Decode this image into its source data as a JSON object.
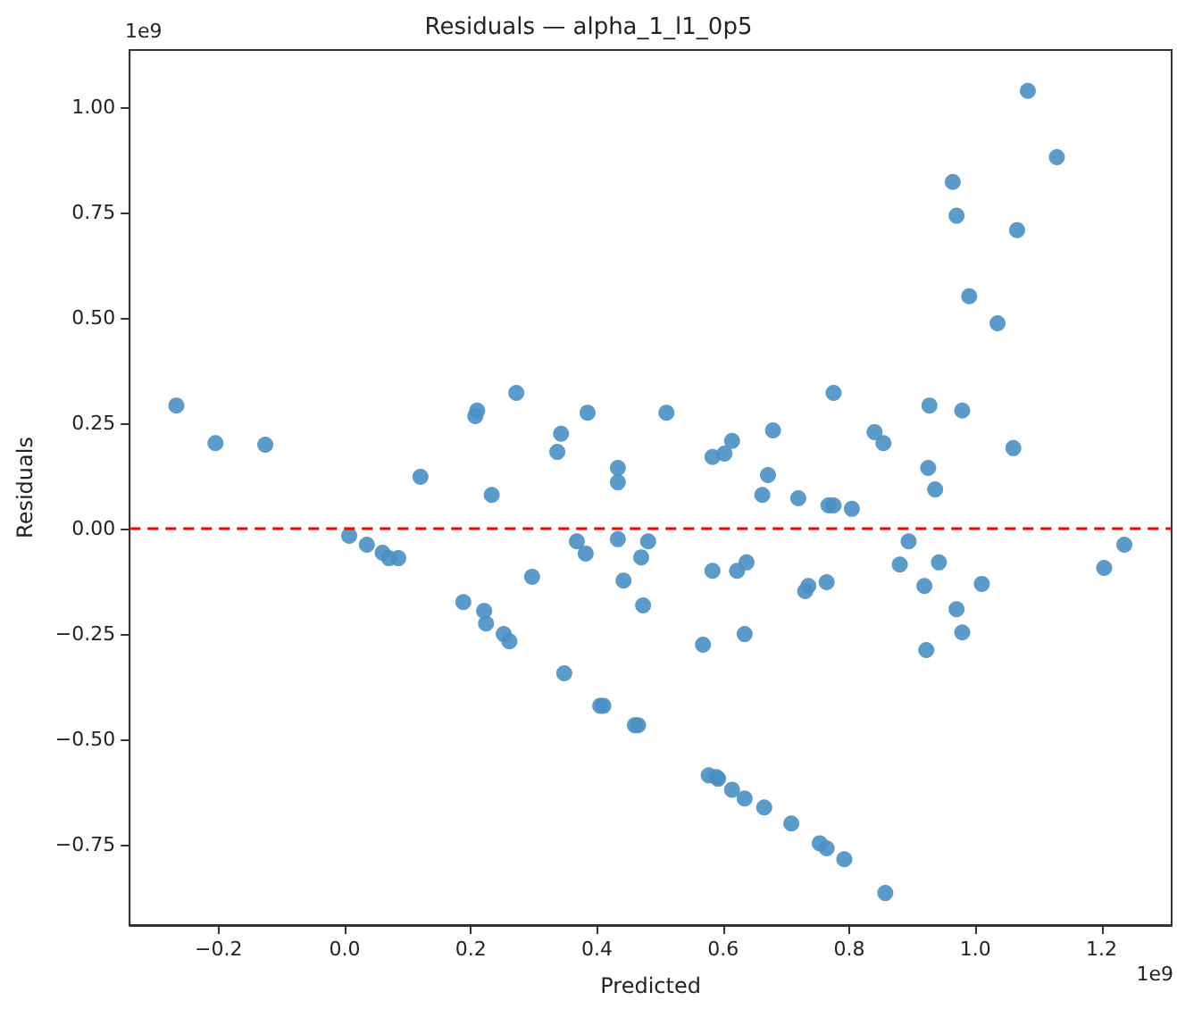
{
  "chart_data": {
    "type": "scatter",
    "title": "Residuals — alpha_1_l1_0p5",
    "xlabel": "Predicted",
    "ylabel": "Residuals",
    "annotations": [
      "1e9",
      "1e9"
    ],
    "xlim": [
      -0.341,
      1.311
    ],
    "ylim": [
      -0.94,
      1.135
    ],
    "xticks": [
      {
        "value": -0.2,
        "label": "−0.2"
      },
      {
        "value": 0,
        "label": "0.0"
      },
      {
        "value": 0.2,
        "label": "0.2"
      },
      {
        "value": 0.4,
        "label": "0.4"
      },
      {
        "value": 0.6,
        "label": "0.6"
      },
      {
        "value": 0.8,
        "label": "0.8"
      },
      {
        "value": 1,
        "label": "1.0"
      },
      {
        "value": 1.2,
        "label": "1.2"
      }
    ],
    "yticks": [
      {
        "value": -0.75,
        "label": "−0.75"
      },
      {
        "value": -0.5,
        "label": "−0.50"
      },
      {
        "value": -0.25,
        "label": "−0.25"
      },
      {
        "value": 0,
        "label": "0.00"
      },
      {
        "value": 0.25,
        "label": "0.25"
      },
      {
        "value": 0.5,
        "label": "0.50"
      },
      {
        "value": 0.75,
        "label": "0.75"
      },
      {
        "value": 1,
        "label": "1.00"
      }
    ],
    "grid": false,
    "marker": "circle",
    "ref_lines": [
      {
        "axis": "y",
        "value": 0,
        "color": "#ff0000",
        "line_style": "dashed"
      }
    ],
    "x": [
      -0.267,
      -0.205,
      -0.126,
      0.007,
      0.035,
      0.06,
      0.07,
      0.085,
      0.188,
      0.221,
      0.224,
      0.252,
      0.261,
      0.297,
      0.348,
      0.405,
      0.41,
      0.46,
      0.465,
      0.368,
      0.382,
      0.433,
      0.442,
      0.47,
      0.473,
      0.481,
      0.12,
      0.233,
      0.207,
      0.21,
      0.272,
      0.343,
      0.337,
      0.385,
      0.433,
      0.433,
      0.51,
      1.083,
      1.129,
      0.964,
      0.97,
      1.066,
      0.99,
      1.035,
      0.775,
      0.927,
      0.979,
      1.06,
      0.679,
      0.614,
      0.602,
      0.583,
      0.84,
      0.854,
      0.925,
      0.936,
      0.671,
      0.662,
      0.719,
      0.767,
      0.775,
      0.804,
      0.583,
      0.568,
      0.622,
      0.637,
      0.634,
      0.73,
      0.735,
      0.764,
      0.88,
      0.894,
      0.942,
      0.919,
      1.01,
      0.97,
      0.979,
      0.922,
      1.204,
      1.236,
      0.577,
      0.589,
      0.592,
      0.614,
      0.634,
      0.665,
      0.708,
      0.753,
      0.764,
      0.792,
      0.857
    ],
    "series": [
      {
        "color": "#4a8fc3",
        "values": [
          0.292,
          0.203,
          0.199,
          -0.017,
          -0.038,
          -0.057,
          -0.07,
          -0.07,
          -0.174,
          -0.195,
          -0.225,
          -0.25,
          -0.267,
          -0.114,
          -0.343,
          -0.42,
          -0.42,
          -0.466,
          -0.466,
          -0.03,
          -0.059,
          -0.025,
          -0.123,
          -0.068,
          -0.182,
          -0.03,
          0.123,
          0.08,
          0.267,
          0.28,
          0.322,
          0.225,
          0.182,
          0.275,
          0.144,
          0.11,
          0.275,
          1.038,
          0.881,
          0.822,
          0.742,
          0.708,
          0.551,
          0.487,
          0.322,
          0.292,
          0.28,
          0.191,
          0.233,
          0.208,
          0.178,
          0.17,
          0.229,
          0.203,
          0.144,
          0.093,
          0.127,
          0.08,
          0.072,
          0.055,
          0.055,
          0.047,
          -0.1,
          -0.275,
          -0.1,
          -0.08,
          -0.25,
          -0.148,
          -0.136,
          -0.127,
          -0.085,
          -0.03,
          -0.08,
          -0.136,
          -0.131,
          -0.191,
          -0.246,
          -0.288,
          -0.093,
          -0.038,
          -0.585,
          -0.589,
          -0.593,
          -0.619,
          -0.64,
          -0.661,
          -0.699,
          -0.746,
          -0.758,
          -0.784,
          -0.864
        ]
      }
    ]
  }
}
